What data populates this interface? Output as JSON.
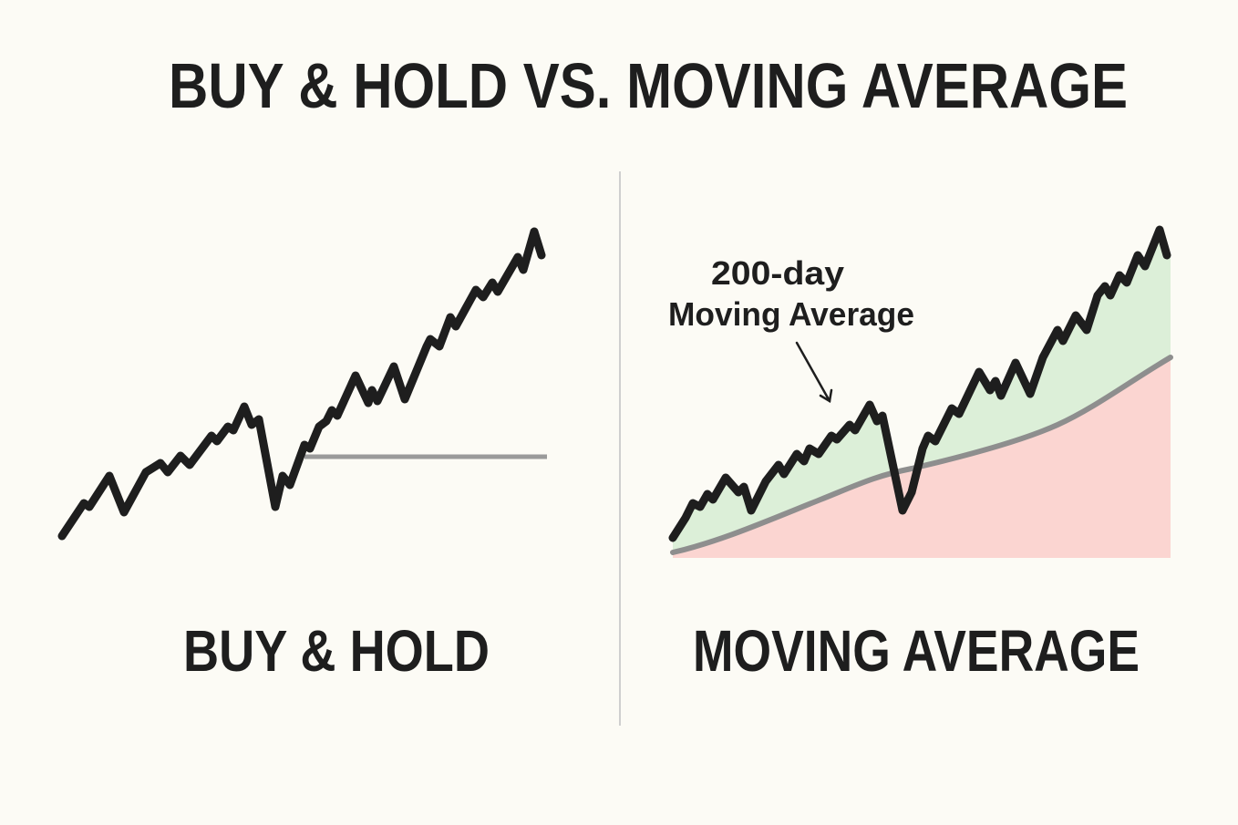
{
  "title": "BUY & HOLD VS. MOVING AVERAGE",
  "panels": [
    {
      "label": "BUY & HOLD"
    },
    {
      "label": "MOVING AVERAGE",
      "annotation": [
        "200-day",
        "Moving Average"
      ]
    }
  ]
}
